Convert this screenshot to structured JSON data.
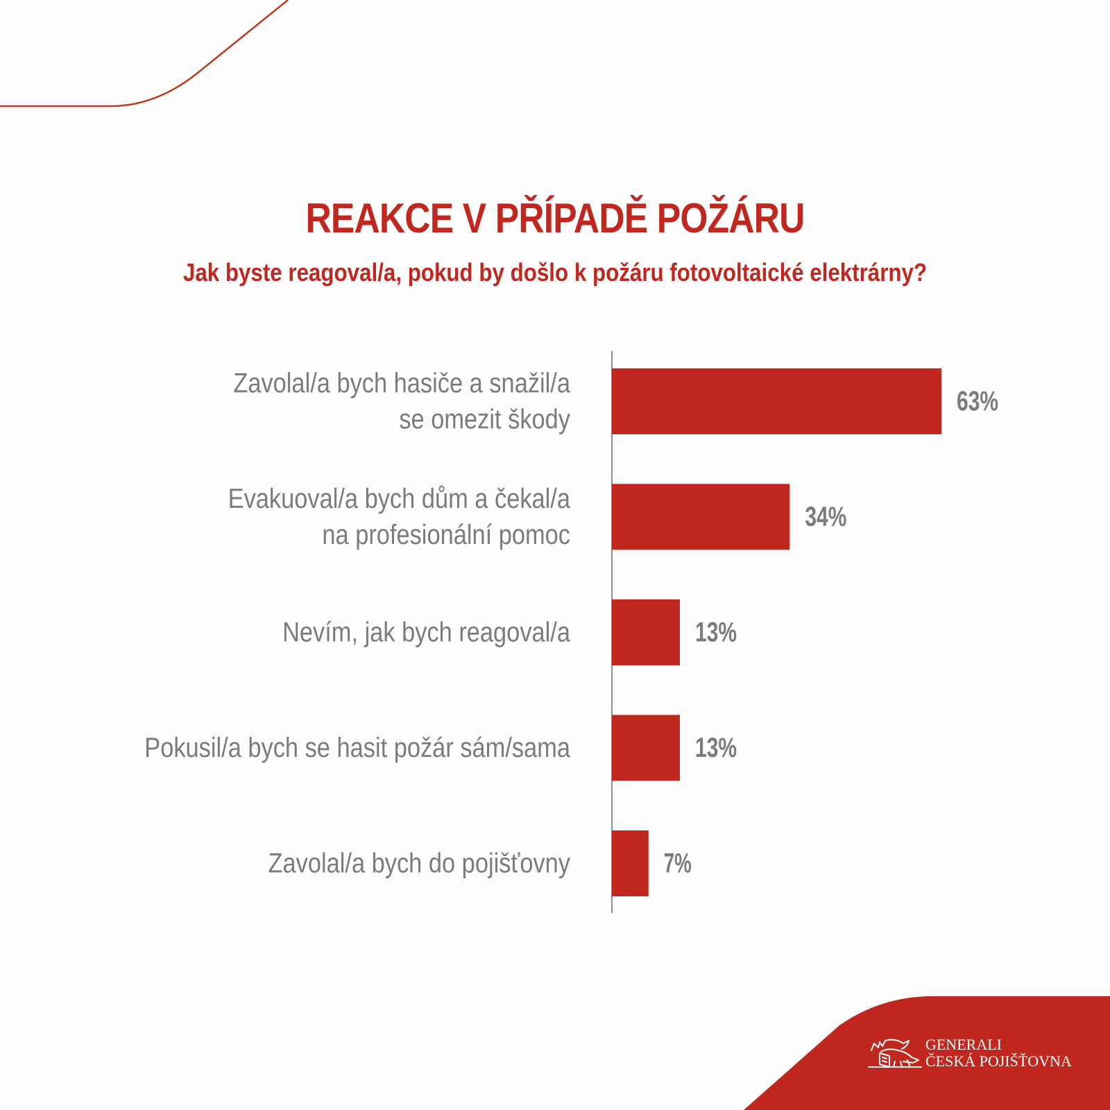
{
  "colors": {
    "accent": "#c0281f",
    "label_gray": "#7b7b7b",
    "axis_gray": "#8c8c8c",
    "background": "#fdfdfd",
    "curve": "#b83a1f"
  },
  "brand": {
    "line1": "GENERALI",
    "line2": "ČESKÁ POJIŠŤOVNA",
    "logo_icon": "lion-logo-icon"
  },
  "chart_data": {
    "type": "bar",
    "orientation": "horizontal",
    "title": "REAKCE V PŘÍPADĚ POŽÁRU",
    "subtitle": "Jak byste reagoval/a, pokud by došlo k požáru fotovoltaické elektrárny?",
    "categories": [
      [
        "Zavolal/a bych hasiče a snažil/a",
        "se omezit škody"
      ],
      [
        "Evakuoval/a bych dům a čekal/a",
        "na profesionální pomoc"
      ],
      [
        "Nevím, jak bych reagoval/a"
      ],
      [
        "Pokusil/a bych se hasit požár sám/sama"
      ],
      [
        "Zavolal/a bych do pojišťovny"
      ]
    ],
    "values": [
      63,
      34,
      13,
      13,
      7
    ],
    "value_labels": [
      "63%",
      "34%",
      "13%",
      "13%",
      "7%"
    ],
    "unit": "%",
    "xlim": [
      0,
      100
    ],
    "grid": false,
    "legend": "none"
  }
}
